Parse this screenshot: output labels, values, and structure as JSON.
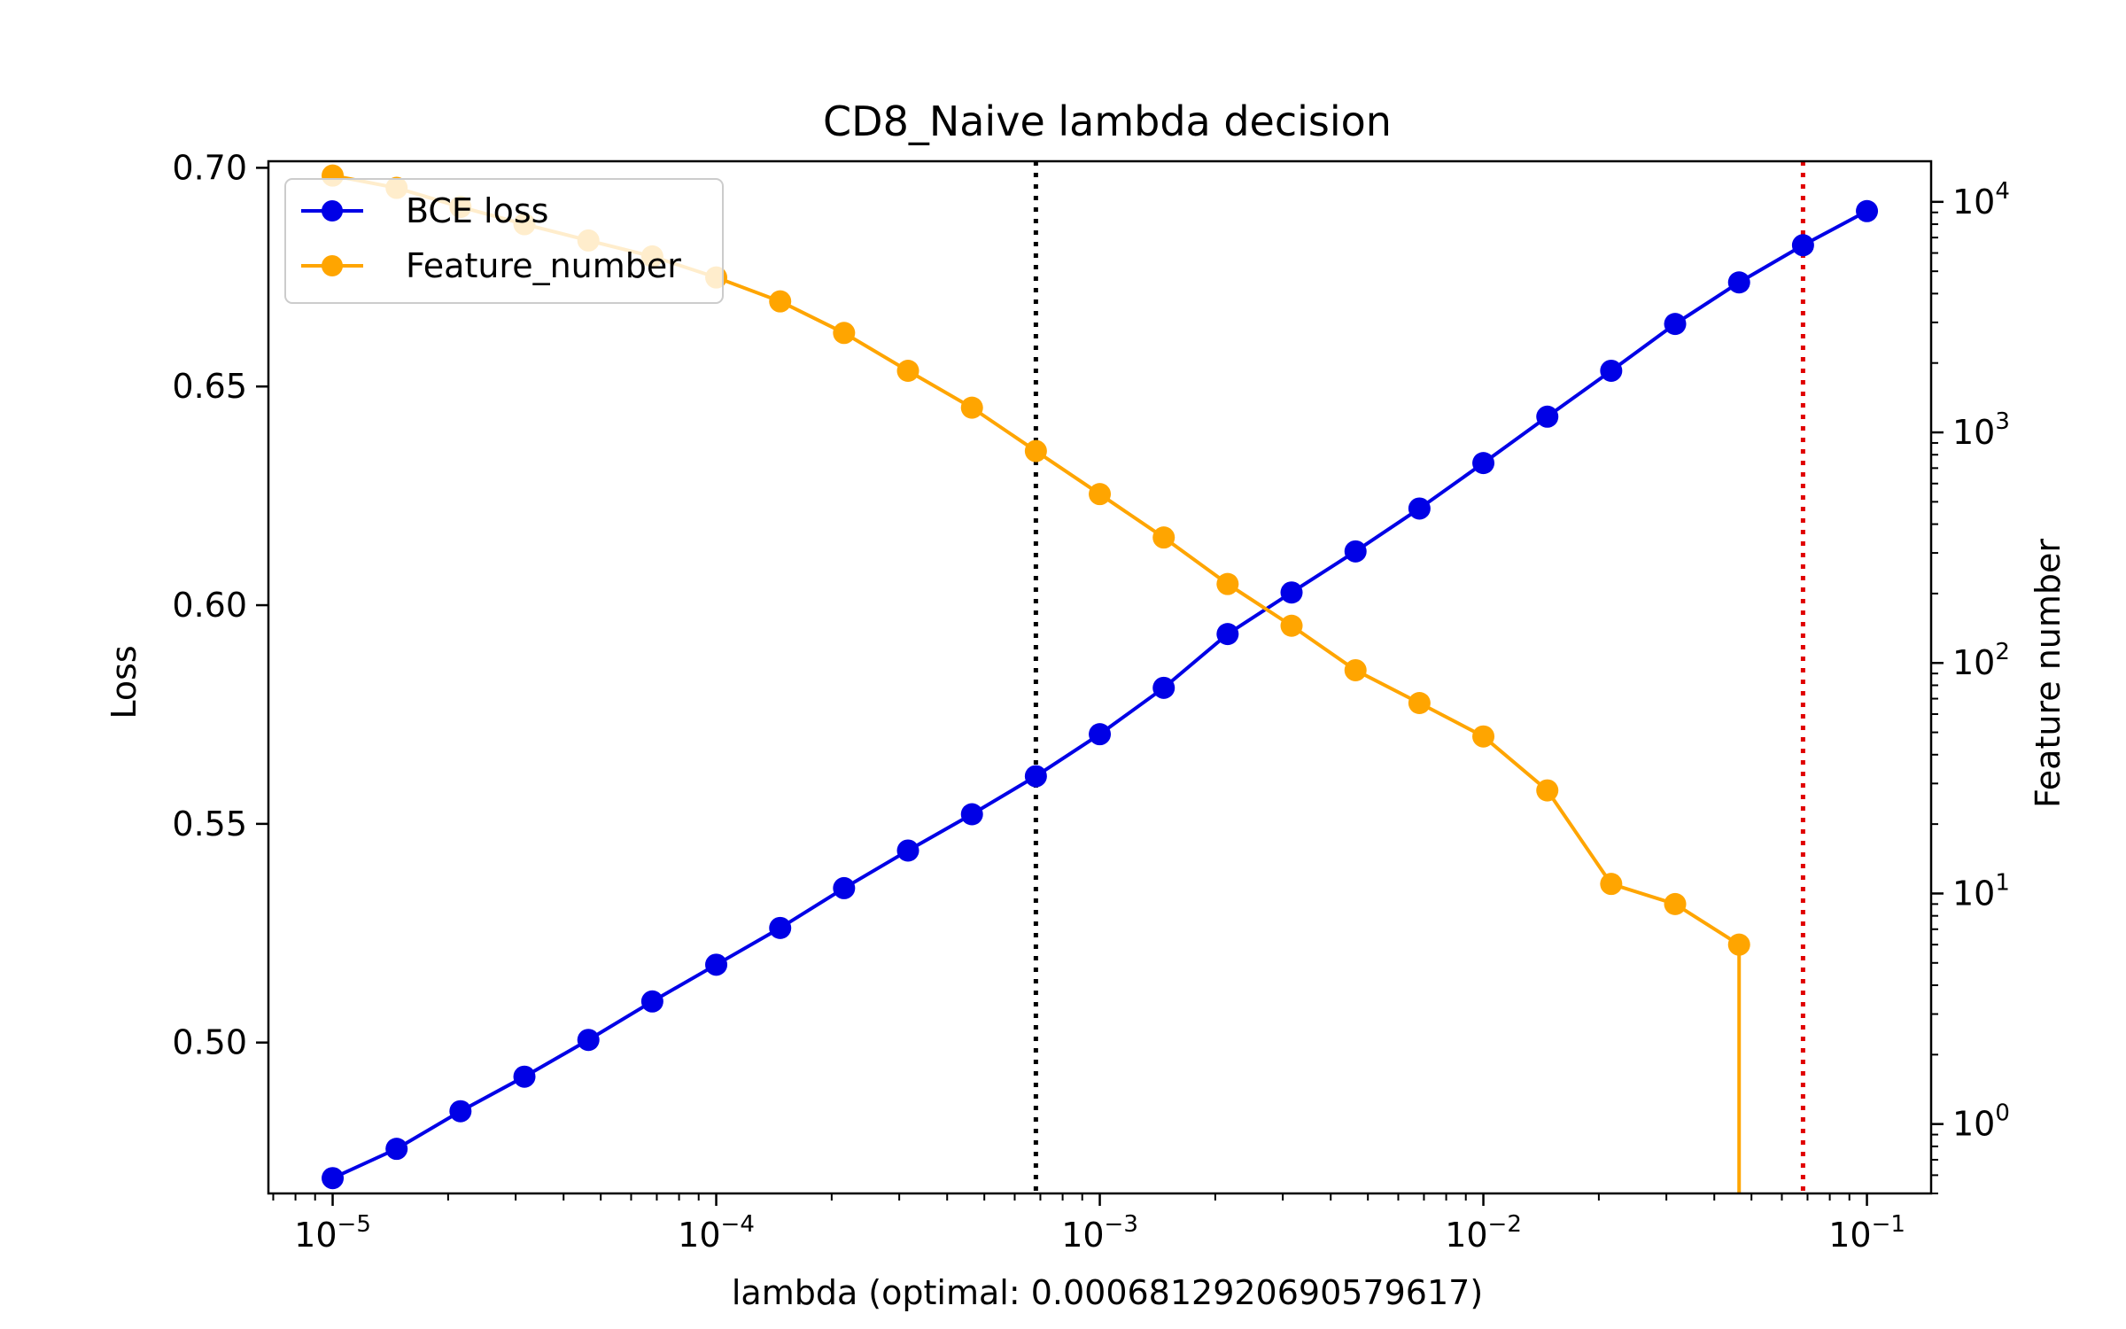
{
  "chart_data": {
    "type": "line",
    "title": "CD8_Naive lambda decision",
    "xlabel": "lambda (optimal: 0.0006812920690579617)",
    "ylabel_left": "Loss",
    "ylabel_right": "Feature number",
    "x_scale": "log",
    "xlim": [
      6.8e-06,
      0.147
    ],
    "ylim_left": [
      0.4655,
      0.7015
    ],
    "ylim_right": [
      0.5,
      15000
    ],
    "y_right_scale": "log",
    "grid": false,
    "legend_position": "top-left",
    "x_ticks": [
      {
        "value": 1e-05,
        "base": "10",
        "exp": "−5"
      },
      {
        "value": 0.0001,
        "base": "10",
        "exp": "−4"
      },
      {
        "value": 0.001,
        "base": "10",
        "exp": "−3"
      },
      {
        "value": 0.01,
        "base": "10",
        "exp": "−2"
      },
      {
        "value": 0.1,
        "base": "10",
        "exp": "−1"
      }
    ],
    "y_left_ticks": [
      {
        "value": 0.5,
        "label": "0.50"
      },
      {
        "value": 0.55,
        "label": "0.55"
      },
      {
        "value": 0.6,
        "label": "0.60"
      },
      {
        "value": 0.65,
        "label": "0.65"
      },
      {
        "value": 0.7,
        "label": "0.70"
      }
    ],
    "y_right_ticks": [
      {
        "value": 1,
        "base": "10",
        "exp": "0"
      },
      {
        "value": 10,
        "base": "10",
        "exp": "1"
      },
      {
        "value": 100,
        "base": "10",
        "exp": "2"
      },
      {
        "value": 1000,
        "base": "10",
        "exp": "3"
      },
      {
        "value": 10000,
        "base": "10",
        "exp": "4"
      }
    ],
    "x": [
      1e-05,
      1.468e-05,
      2.154e-05,
      3.162e-05,
      4.642e-05,
      6.813e-05,
      0.0001,
      0.0001468,
      0.0002154,
      0.0003162,
      0.0004642,
      0.0006813,
      0.001,
      0.001468,
      0.002154,
      0.003162,
      0.004642,
      0.006813,
      0.01,
      0.01468,
      0.02154,
      0.03162,
      0.04642,
      0.06813,
      0.1
    ],
    "series": [
      {
        "name": "BCE loss",
        "axis": "left",
        "color": "#0000e6",
        "values": [
          0.469,
          0.4757,
          0.4843,
          0.4922,
          0.5006,
          0.5094,
          0.5178,
          0.5262,
          0.5353,
          0.5439,
          0.5522,
          0.5609,
          0.5705,
          0.5811,
          0.5934,
          0.6029,
          0.6123,
          0.6221,
          0.6325,
          0.6431,
          0.6536,
          0.6643,
          0.6738,
          0.6823,
          0.6901
        ]
      },
      {
        "name": "Feature_number",
        "axis": "right",
        "color": "#ffa500",
        "values": [
          13000,
          11500,
          9500,
          8000,
          6800,
          5800,
          4700,
          3700,
          2700,
          1850,
          1280,
          830,
          540,
          350,
          220,
          145,
          93,
          67,
          48,
          28,
          11,
          9,
          6,
          0,
          0
        ]
      }
    ],
    "vlines": [
      {
        "x": 0.0006813,
        "color": "#000000",
        "style": "dotted"
      },
      {
        "x": 0.06813,
        "color": "#e00000",
        "style": "dotted"
      }
    ]
  }
}
